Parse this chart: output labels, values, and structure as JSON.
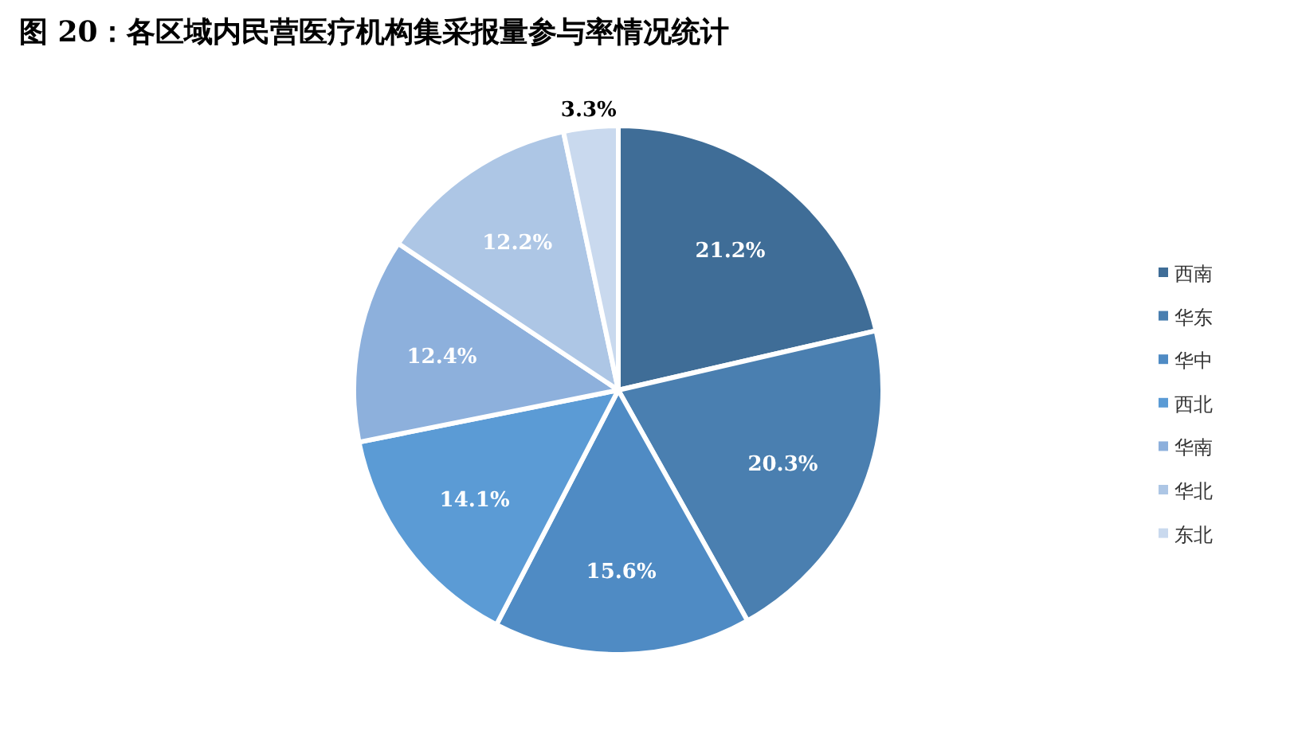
{
  "chart_data": {
    "type": "pie",
    "title": "图 20：各区域内民营医疗机构集采报量参与率情况统计",
    "categories": [
      "西南",
      "华东",
      "华中",
      "西北",
      "华南",
      "华北",
      "东北"
    ],
    "values": [
      21.2,
      20.3,
      15.6,
      14.1,
      12.4,
      12.2,
      3.3
    ],
    "colors": [
      "#3f6d97",
      "#4a7fb0",
      "#4f8bc4",
      "#5b9bd5",
      "#8db0dc",
      "#adc6e5",
      "#c9d9ee"
    ],
    "value_labels": [
      "21.2%",
      "20.3%",
      "15.6%",
      "14.1%",
      "12.4%",
      "12.2%",
      "3.3%"
    ],
    "legend": "right"
  }
}
